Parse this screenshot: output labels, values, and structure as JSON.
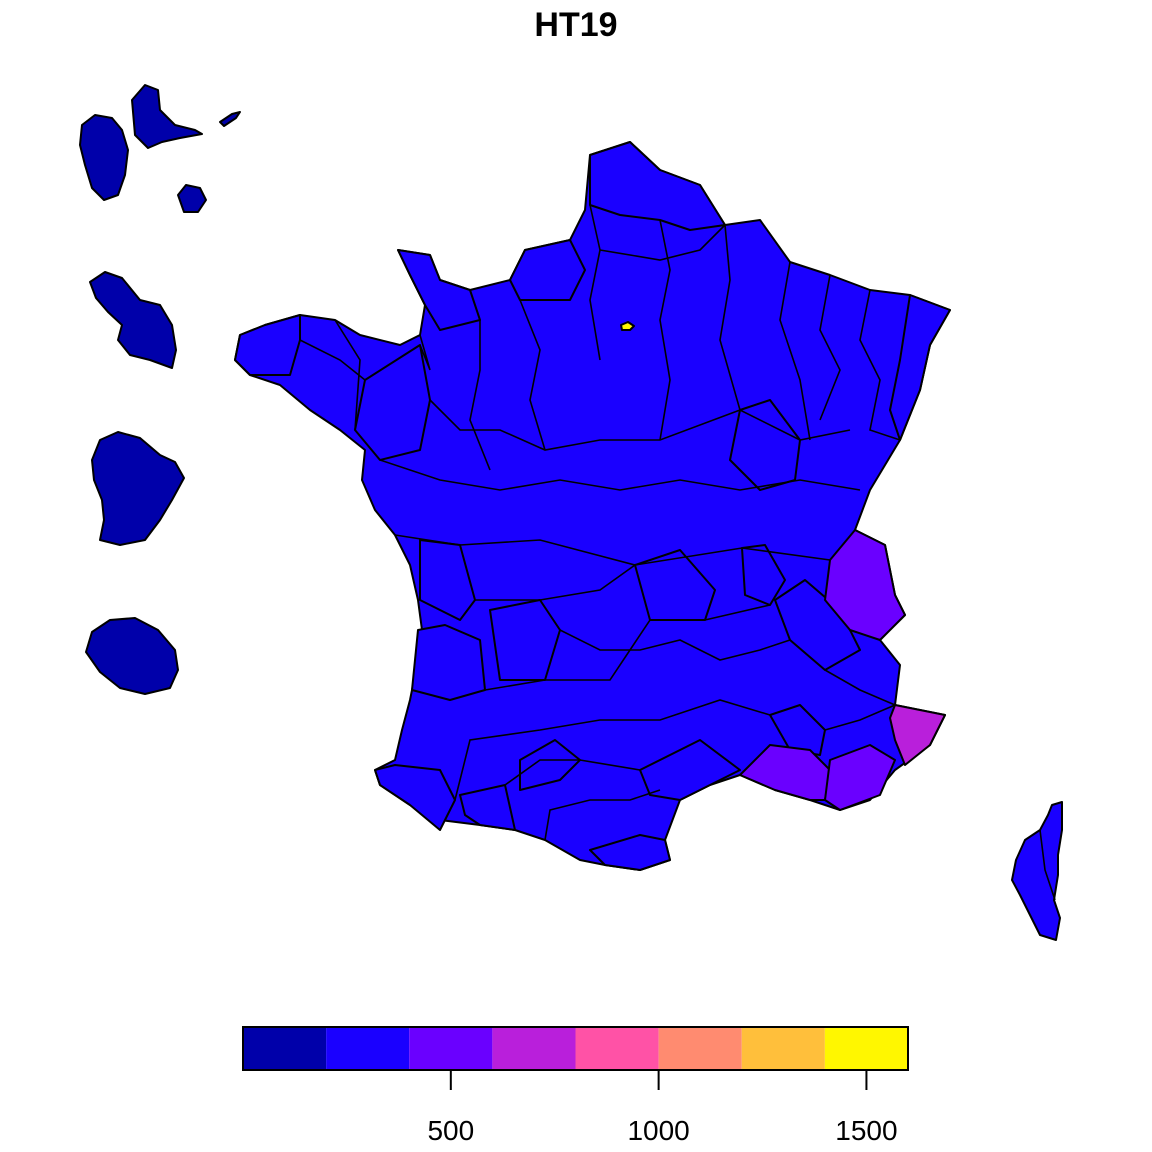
{
  "title": "HT19",
  "legend": {
    "bins": [
      {
        "from": 0,
        "to": 200,
        "color": "#0000AA"
      },
      {
        "from": 200,
        "to": 400,
        "color": "#1A00FF"
      },
      {
        "from": 400,
        "to": 600,
        "color": "#6A00FF"
      },
      {
        "from": 600,
        "to": 800,
        "color": "#B91FDB"
      },
      {
        "from": 800,
        "to": 1000,
        "color": "#FF52A6"
      },
      {
        "from": 1000,
        "to": 1200,
        "color": "#FF8B70"
      },
      {
        "from": 1200,
        "to": 1400,
        "color": "#FFBF3B"
      },
      {
        "from": 1400,
        "to": 1600,
        "color": "#FFF700"
      }
    ],
    "ticks": [
      {
        "value": 500,
        "label": "500"
      },
      {
        "value": 1000,
        "label": "1000"
      },
      {
        "value": 1500,
        "label": "1500"
      }
    ]
  },
  "regions": [
    {
      "name": "metropolitan-france",
      "level": 1
    },
    {
      "name": "guadeloupe",
      "level": 0
    },
    {
      "name": "martinique",
      "level": 0
    },
    {
      "name": "guyane",
      "level": 0
    },
    {
      "name": "reunion",
      "level": 0
    },
    {
      "name": "corse",
      "level": 1
    },
    {
      "name": "paris",
      "level": 7
    },
    {
      "name": "alpes-maritimes",
      "level": 3
    },
    {
      "name": "var",
      "level": 2
    },
    {
      "name": "bouches-du-rhone",
      "level": 2
    },
    {
      "name": "hautes-alpes-savoie",
      "level": 2
    }
  ]
}
